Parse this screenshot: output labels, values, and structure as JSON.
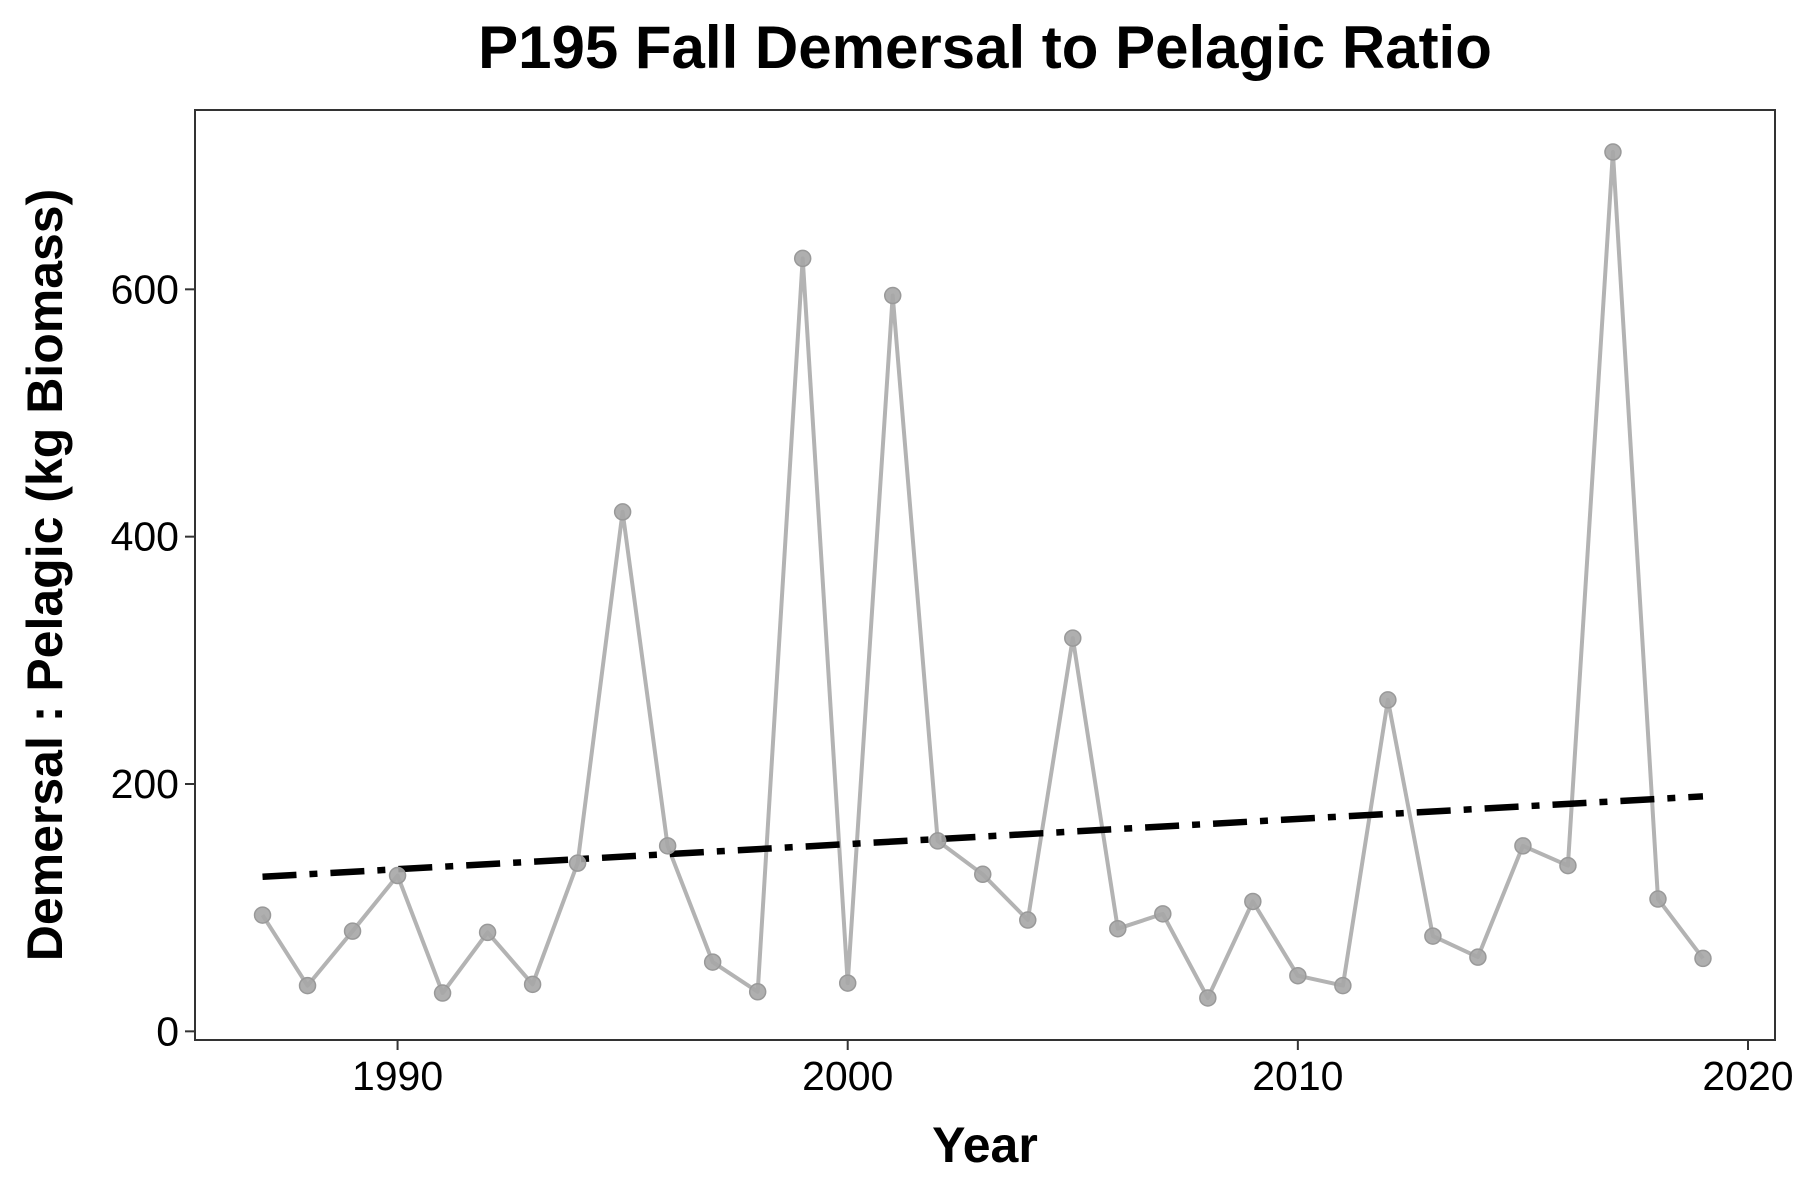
{
  "chart_data": {
    "type": "line",
    "title": "P195 Fall Demersal to Pelagic Ratio",
    "xlabel": "Year",
    "ylabel": "Demersal : Pelagic (kg Biomass)",
    "xlim": [
      1985.5,
      2020.6
    ],
    "ylim": [
      -7,
      745
    ],
    "x_ticks": [
      1990,
      2000,
      2010,
      2020
    ],
    "y_ticks": [
      0,
      200,
      400,
      600
    ],
    "grid": false,
    "series": [
      {
        "kind": "observed",
        "color": "#b3b3b3",
        "marker_color": "#a6a6a6",
        "points": [
          {
            "x": 1987,
            "y": 94
          },
          {
            "x": 1988,
            "y": 37
          },
          {
            "x": 1989,
            "y": 81
          },
          {
            "x": 1990,
            "y": 126
          },
          {
            "x": 1991,
            "y": 31
          },
          {
            "x": 1992,
            "y": 80
          },
          {
            "x": 1993,
            "y": 38
          },
          {
            "x": 1994,
            "y": 136
          },
          {
            "x": 1995,
            "y": 420
          },
          {
            "x": 1996,
            "y": 150
          },
          {
            "x": 1997,
            "y": 56
          },
          {
            "x": 1998,
            "y": 32
          },
          {
            "x": 1999,
            "y": 625
          },
          {
            "x": 2000,
            "y": 39
          },
          {
            "x": 2001,
            "y": 595
          },
          {
            "x": 2002,
            "y": 154
          },
          {
            "x": 2003,
            "y": 127
          },
          {
            "x": 2004,
            "y": 90
          },
          {
            "x": 2005,
            "y": 318
          },
          {
            "x": 2006,
            "y": 83
          },
          {
            "x": 2007,
            "y": 95
          },
          {
            "x": 2008,
            "y": 27
          },
          {
            "x": 2009,
            "y": 105
          },
          {
            "x": 2010,
            "y": 45
          },
          {
            "x": 2011,
            "y": 37
          },
          {
            "x": 2012,
            "y": 268
          },
          {
            "x": 2013,
            "y": 77
          },
          {
            "x": 2014,
            "y": 60
          },
          {
            "x": 2015,
            "y": 150
          },
          {
            "x": 2016,
            "y": 134
          },
          {
            "x": 2017,
            "y": 711
          },
          {
            "x": 2018,
            "y": 107
          },
          {
            "x": 2019,
            "y": 59
          }
        ]
      },
      {
        "kind": "trend",
        "color": "#000000",
        "dash": "dash-dot",
        "points": [
          {
            "x": 1987,
            "y": 125
          },
          {
            "x": 2019,
            "y": 190
          }
        ]
      }
    ]
  }
}
